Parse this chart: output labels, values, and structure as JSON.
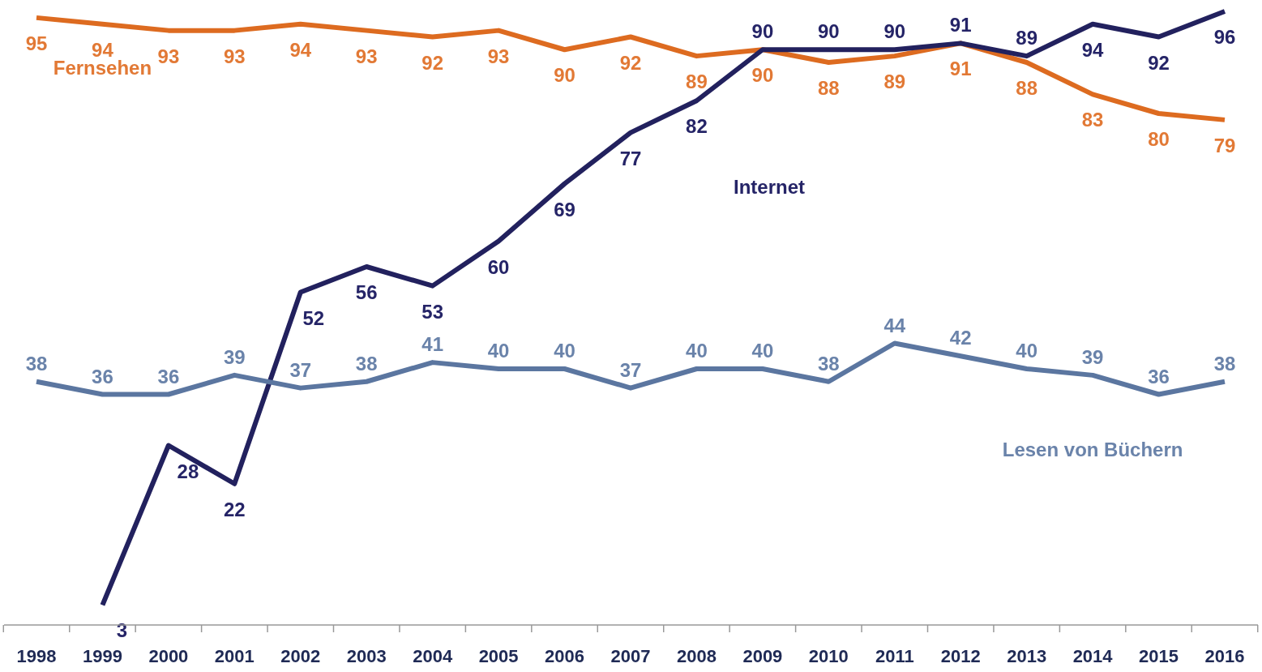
{
  "chart_data": {
    "type": "line",
    "categories": [
      "1998",
      "1999",
      "2000",
      "2001",
      "2002",
      "2003",
      "2004",
      "2005",
      "2006",
      "2007",
      "2008",
      "2009",
      "2010",
      "2011",
      "2012",
      "2013",
      "2014",
      "2015",
      "2016"
    ],
    "series": [
      {
        "name": "Fernsehen",
        "color": "#dd6b20",
        "values": [
          95,
          94,
          93,
          93,
          94,
          93,
          92,
          93,
          90,
          92,
          89,
          90,
          88,
          89,
          91,
          88,
          83,
          80,
          79
        ]
      },
      {
        "name": "Internet",
        "color": "#22215e",
        "values": [
          null,
          3,
          28,
          22,
          52,
          56,
          53,
          60,
          69,
          77,
          82,
          90,
          90,
          90,
          91,
          89,
          94,
          92,
          96
        ]
      },
      {
        "name": "Lesen von Büchern",
        "color": "#5b76a0",
        "values": [
          38,
          36,
          36,
          39,
          37,
          38,
          41,
          40,
          40,
          37,
          40,
          40,
          38,
          44,
          42,
          40,
          39,
          36,
          38
        ]
      }
    ],
    "tick_labels": "x",
    "data_labels": true,
    "legend": false,
    "marker": "none",
    "line_style": "solid"
  }
}
